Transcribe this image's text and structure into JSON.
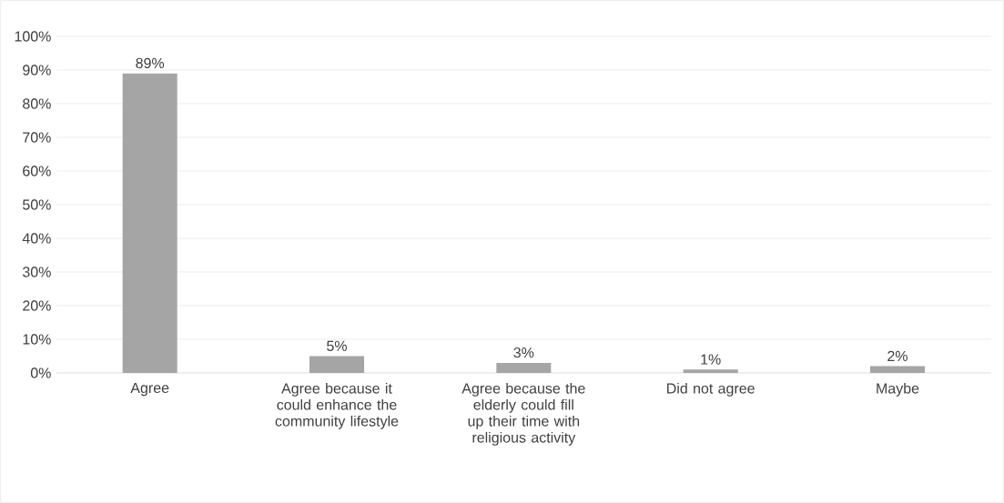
{
  "chart_data": {
    "type": "bar",
    "categories": [
      "Agree",
      "Agree because it could enhance the community lifestyle",
      "Agree because the elderly could fill up their time with religious activity",
      "Did not agree",
      "Maybe"
    ],
    "values": [
      89,
      5,
      3,
      1,
      2
    ],
    "value_labels": [
      "89%",
      "5%",
      "3%",
      "1%",
      "2%"
    ],
    "color": "#a5a5a5",
    "ylim": [
      0,
      100
    ],
    "yticks": [
      {
        "value": 0,
        "label": "0%"
      },
      {
        "value": 10,
        "label": "10%"
      },
      {
        "value": 20,
        "label": "20%"
      },
      {
        "value": 30,
        "label": "30%"
      },
      {
        "value": 40,
        "label": "40%"
      },
      {
        "value": 50,
        "label": "50%"
      },
      {
        "value": 60,
        "label": "60%"
      },
      {
        "value": 70,
        "label": "70%"
      },
      {
        "value": 80,
        "label": "80%"
      },
      {
        "value": 90,
        "label": "90%"
      },
      {
        "value": 100,
        "label": "100%"
      }
    ],
    "grid": "y"
  }
}
